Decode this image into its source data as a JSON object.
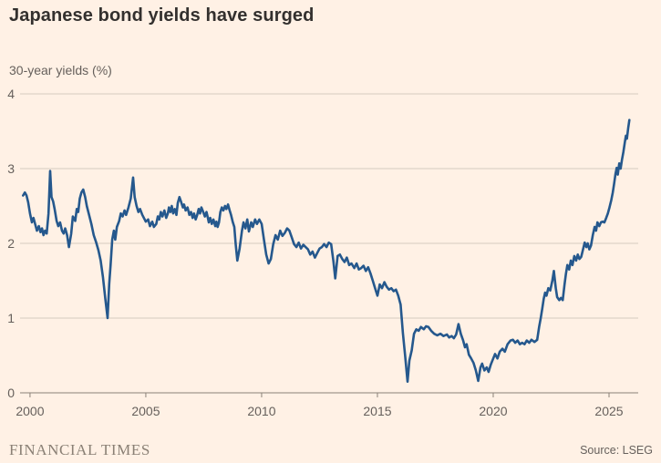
{
  "header": {
    "title": "Japanese bond yields have surged",
    "subtitle": "30-year yields (%)"
  },
  "footer": {
    "brand": "FINANCIAL TIMES",
    "source": "Source: LSEG"
  },
  "colors": {
    "background": "#FFF1E5",
    "title_text": "#33302E",
    "muted_text": "#66605C",
    "gridline": "#D5CABE",
    "baseline": "#8A8178",
    "line": "#25588D",
    "brand_text": "#8A8075"
  },
  "chart_data": {
    "type": "line",
    "title": "Japanese bond yields have surged",
    "ylabel": "30-year yields (%)",
    "xlabel": "",
    "source": "LSEG",
    "legend": "none",
    "grid": "horizontal",
    "ylim": [
      0,
      4
    ],
    "xlim": [
      1999.57,
      2026.26
    ],
    "yticks": [
      0,
      1,
      2,
      3,
      4
    ],
    "xticks": [
      2000,
      2005,
      2010,
      2015,
      2020,
      2025
    ],
    "points": [
      [
        1999.7,
        2.64
      ],
      [
        1999.78,
        2.68
      ],
      [
        1999.85,
        2.64
      ],
      [
        1999.92,
        2.55
      ],
      [
        2000.0,
        2.4
      ],
      [
        2000.08,
        2.28
      ],
      [
        2000.15,
        2.34
      ],
      [
        2000.22,
        2.26
      ],
      [
        2000.3,
        2.17
      ],
      [
        2000.38,
        2.23
      ],
      [
        2000.45,
        2.15
      ],
      [
        2000.52,
        2.2
      ],
      [
        2000.58,
        2.11
      ],
      [
        2000.65,
        2.17
      ],
      [
        2000.72,
        2.13
      ],
      [
        2000.8,
        2.4
      ],
      [
        2000.87,
        2.97
      ],
      [
        2000.93,
        2.62
      ],
      [
        2001.0,
        2.56
      ],
      [
        2001.06,
        2.46
      ],
      [
        2001.15,
        2.3
      ],
      [
        2001.22,
        2.23
      ],
      [
        2001.3,
        2.28
      ],
      [
        2001.38,
        2.17
      ],
      [
        2001.45,
        2.13
      ],
      [
        2001.52,
        2.2
      ],
      [
        2001.6,
        2.11
      ],
      [
        2001.68,
        1.95
      ],
      [
        2001.78,
        2.13
      ],
      [
        2001.85,
        2.36
      ],
      [
        2001.95,
        2.3
      ],
      [
        2002.02,
        2.46
      ],
      [
        2002.08,
        2.42
      ],
      [
        2002.15,
        2.6
      ],
      [
        2002.22,
        2.68
      ],
      [
        2002.3,
        2.72
      ],
      [
        2002.38,
        2.62
      ],
      [
        2002.45,
        2.5
      ],
      [
        2002.55,
        2.38
      ],
      [
        2002.65,
        2.26
      ],
      [
        2002.75,
        2.11
      ],
      [
        2002.85,
        2.02
      ],
      [
        2002.95,
        1.91
      ],
      [
        2003.05,
        1.77
      ],
      [
        2003.15,
        1.55
      ],
      [
        2003.25,
        1.26
      ],
      [
        2003.35,
        1.0
      ],
      [
        2003.42,
        1.46
      ],
      [
        2003.48,
        1.71
      ],
      [
        2003.55,
        2.05
      ],
      [
        2003.62,
        2.17
      ],
      [
        2003.68,
        2.05
      ],
      [
        2003.75,
        2.22
      ],
      [
        2003.85,
        2.3
      ],
      [
        2003.92,
        2.4
      ],
      [
        2004.0,
        2.36
      ],
      [
        2004.08,
        2.44
      ],
      [
        2004.15,
        2.38
      ],
      [
        2004.25,
        2.48
      ],
      [
        2004.35,
        2.6
      ],
      [
        2004.45,
        2.88
      ],
      [
        2004.52,
        2.62
      ],
      [
        2004.6,
        2.5
      ],
      [
        2004.68,
        2.42
      ],
      [
        2004.75,
        2.46
      ],
      [
        2004.85,
        2.38
      ],
      [
        2004.95,
        2.32
      ],
      [
        2005.0,
        2.29
      ],
      [
        2005.1,
        2.32
      ],
      [
        2005.18,
        2.23
      ],
      [
        2005.28,
        2.29
      ],
      [
        2005.35,
        2.22
      ],
      [
        2005.45,
        2.26
      ],
      [
        2005.52,
        2.36
      ],
      [
        2005.58,
        2.32
      ],
      [
        2005.65,
        2.42
      ],
      [
        2005.72,
        2.36
      ],
      [
        2005.8,
        2.44
      ],
      [
        2005.88,
        2.34
      ],
      [
        2005.95,
        2.4
      ],
      [
        2006.0,
        2.48
      ],
      [
        2006.06,
        2.42
      ],
      [
        2006.12,
        2.5
      ],
      [
        2006.18,
        2.4
      ],
      [
        2006.25,
        2.46
      ],
      [
        2006.32,
        2.38
      ],
      [
        2006.38,
        2.54
      ],
      [
        2006.45,
        2.62
      ],
      [
        2006.52,
        2.56
      ],
      [
        2006.6,
        2.48
      ],
      [
        2006.65,
        2.52
      ],
      [
        2006.72,
        2.44
      ],
      [
        2006.8,
        2.48
      ],
      [
        2006.88,
        2.38
      ],
      [
        2006.95,
        2.42
      ],
      [
        2007.02,
        2.34
      ],
      [
        2007.08,
        2.4
      ],
      [
        2007.15,
        2.32
      ],
      [
        2007.22,
        2.38
      ],
      [
        2007.28,
        2.46
      ],
      [
        2007.34,
        2.4
      ],
      [
        2007.4,
        2.48
      ],
      [
        2007.48,
        2.42
      ],
      [
        2007.55,
        2.36
      ],
      [
        2007.62,
        2.42
      ],
      [
        2007.68,
        2.34
      ],
      [
        2007.72,
        2.28
      ],
      [
        2007.78,
        2.34
      ],
      [
        2007.85,
        2.26
      ],
      [
        2007.92,
        2.32
      ],
      [
        2008.0,
        2.23
      ],
      [
        2008.05,
        2.29
      ],
      [
        2008.1,
        2.22
      ],
      [
        2008.16,
        2.28
      ],
      [
        2008.22,
        2.42
      ],
      [
        2008.28,
        2.48
      ],
      [
        2008.35,
        2.44
      ],
      [
        2008.42,
        2.5
      ],
      [
        2008.48,
        2.46
      ],
      [
        2008.55,
        2.52
      ],
      [
        2008.62,
        2.44
      ],
      [
        2008.68,
        2.38
      ],
      [
        2008.75,
        2.29
      ],
      [
        2008.82,
        2.22
      ],
      [
        2008.88,
        1.99
      ],
      [
        2008.95,
        1.77
      ],
      [
        2009.05,
        1.93
      ],
      [
        2009.15,
        2.17
      ],
      [
        2009.22,
        2.28
      ],
      [
        2009.3,
        2.2
      ],
      [
        2009.38,
        2.32
      ],
      [
        2009.45,
        2.16
      ],
      [
        2009.55,
        2.28
      ],
      [
        2009.62,
        2.22
      ],
      [
        2009.72,
        2.32
      ],
      [
        2009.8,
        2.26
      ],
      [
        2009.9,
        2.32
      ],
      [
        2010.0,
        2.26
      ],
      [
        2010.1,
        2.05
      ],
      [
        2010.2,
        1.85
      ],
      [
        2010.3,
        1.73
      ],
      [
        2010.4,
        1.79
      ],
      [
        2010.5,
        1.99
      ],
      [
        2010.6,
        2.11
      ],
      [
        2010.7,
        2.05
      ],
      [
        2010.8,
        2.17
      ],
      [
        2010.9,
        2.1
      ],
      [
        2011.0,
        2.14
      ],
      [
        2011.1,
        2.2
      ],
      [
        2011.2,
        2.17
      ],
      [
        2011.3,
        2.08
      ],
      [
        2011.4,
        1.99
      ],
      [
        2011.5,
        1.95
      ],
      [
        2011.6,
        2.01
      ],
      [
        2011.7,
        1.93
      ],
      [
        2011.8,
        1.98
      ],
      [
        2011.9,
        1.95
      ],
      [
        2012.0,
        1.92
      ],
      [
        2012.1,
        1.85
      ],
      [
        2012.2,
        1.89
      ],
      [
        2012.3,
        1.81
      ],
      [
        2012.4,
        1.87
      ],
      [
        2012.5,
        1.93
      ],
      [
        2012.6,
        1.95
      ],
      [
        2012.7,
        1.99
      ],
      [
        2012.8,
        1.95
      ],
      [
        2012.9,
        2.01
      ],
      [
        2013.0,
        1.99
      ],
      [
        2013.1,
        1.76
      ],
      [
        2013.18,
        1.53
      ],
      [
        2013.28,
        1.83
      ],
      [
        2013.38,
        1.85
      ],
      [
        2013.48,
        1.79
      ],
      [
        2013.58,
        1.75
      ],
      [
        2013.68,
        1.81
      ],
      [
        2013.78,
        1.71
      ],
      [
        2013.88,
        1.73
      ],
      [
        2014.0,
        1.67
      ],
      [
        2014.1,
        1.73
      ],
      [
        2014.2,
        1.65
      ],
      [
        2014.3,
        1.67
      ],
      [
        2014.4,
        1.7
      ],
      [
        2014.5,
        1.63
      ],
      [
        2014.6,
        1.68
      ],
      [
        2014.7,
        1.6
      ],
      [
        2014.8,
        1.5
      ],
      [
        2014.9,
        1.4
      ],
      [
        2015.0,
        1.3
      ],
      [
        2015.1,
        1.45
      ],
      [
        2015.2,
        1.4
      ],
      [
        2015.3,
        1.48
      ],
      [
        2015.4,
        1.42
      ],
      [
        2015.5,
        1.38
      ],
      [
        2015.6,
        1.4
      ],
      [
        2015.7,
        1.36
      ],
      [
        2015.8,
        1.38
      ],
      [
        2015.9,
        1.3
      ],
      [
        2016.0,
        1.18
      ],
      [
        2016.1,
        0.8
      ],
      [
        2016.2,
        0.49
      ],
      [
        2016.3,
        0.15
      ],
      [
        2016.38,
        0.43
      ],
      [
        2016.48,
        0.57
      ],
      [
        2016.58,
        0.79
      ],
      [
        2016.68,
        0.85
      ],
      [
        2016.78,
        0.83
      ],
      [
        2016.88,
        0.88
      ],
      [
        2017.0,
        0.85
      ],
      [
        2017.1,
        0.89
      ],
      [
        2017.2,
        0.88
      ],
      [
        2017.32,
        0.83
      ],
      [
        2017.45,
        0.79
      ],
      [
        2017.58,
        0.77
      ],
      [
        2017.72,
        0.79
      ],
      [
        2017.85,
        0.76
      ],
      [
        2018.0,
        0.78
      ],
      [
        2018.1,
        0.74
      ],
      [
        2018.2,
        0.76
      ],
      [
        2018.3,
        0.73
      ],
      [
        2018.4,
        0.78
      ],
      [
        2018.5,
        0.92
      ],
      [
        2018.6,
        0.79
      ],
      [
        2018.7,
        0.7
      ],
      [
        2018.78,
        0.61
      ],
      [
        2018.85,
        0.65
      ],
      [
        2018.95,
        0.51
      ],
      [
        2019.05,
        0.46
      ],
      [
        2019.15,
        0.4
      ],
      [
        2019.25,
        0.3
      ],
      [
        2019.35,
        0.16
      ],
      [
        2019.45,
        0.34
      ],
      [
        2019.52,
        0.39
      ],
      [
        2019.62,
        0.3
      ],
      [
        2019.72,
        0.34
      ],
      [
        2019.8,
        0.28
      ],
      [
        2019.9,
        0.38
      ],
      [
        2020.0,
        0.46
      ],
      [
        2020.08,
        0.52
      ],
      [
        2020.18,
        0.46
      ],
      [
        2020.28,
        0.55
      ],
      [
        2020.4,
        0.59
      ],
      [
        2020.5,
        0.55
      ],
      [
        2020.62,
        0.65
      ],
      [
        2020.75,
        0.7
      ],
      [
        2020.85,
        0.71
      ],
      [
        2020.95,
        0.67
      ],
      [
        2021.05,
        0.7
      ],
      [
        2021.15,
        0.65
      ],
      [
        2021.25,
        0.67
      ],
      [
        2021.35,
        0.65
      ],
      [
        2021.45,
        0.7
      ],
      [
        2021.55,
        0.67
      ],
      [
        2021.65,
        0.71
      ],
      [
        2021.78,
        0.68
      ],
      [
        2021.9,
        0.71
      ],
      [
        2021.98,
        0.88
      ],
      [
        2022.05,
        1.0
      ],
      [
        2022.12,
        1.13
      ],
      [
        2022.18,
        1.26
      ],
      [
        2022.24,
        1.34
      ],
      [
        2022.3,
        1.3
      ],
      [
        2022.38,
        1.4
      ],
      [
        2022.46,
        1.37
      ],
      [
        2022.55,
        1.5
      ],
      [
        2022.62,
        1.63
      ],
      [
        2022.7,
        1.4
      ],
      [
        2022.76,
        1.28
      ],
      [
        2022.85,
        1.24
      ],
      [
        2022.92,
        1.27
      ],
      [
        2023.0,
        1.24
      ],
      [
        2023.08,
        1.45
      ],
      [
        2023.14,
        1.59
      ],
      [
        2023.2,
        1.71
      ],
      [
        2023.28,
        1.65
      ],
      [
        2023.35,
        1.77
      ],
      [
        2023.42,
        1.71
      ],
      [
        2023.5,
        1.83
      ],
      [
        2023.58,
        1.77
      ],
      [
        2023.65,
        1.85
      ],
      [
        2023.72,
        1.79
      ],
      [
        2023.8,
        1.82
      ],
      [
        2023.88,
        1.92
      ],
      [
        2023.95,
        2.01
      ],
      [
        2024.02,
        1.95
      ],
      [
        2024.08,
        2.0
      ],
      [
        2024.15,
        1.92
      ],
      [
        2024.22,
        1.97
      ],
      [
        2024.3,
        2.11
      ],
      [
        2024.38,
        2.22
      ],
      [
        2024.44,
        2.17
      ],
      [
        2024.5,
        2.28
      ],
      [
        2024.58,
        2.23
      ],
      [
        2024.65,
        2.28
      ],
      [
        2024.72,
        2.29
      ],
      [
        2024.8,
        2.28
      ],
      [
        2024.88,
        2.34
      ],
      [
        2024.95,
        2.4
      ],
      [
        2025.02,
        2.48
      ],
      [
        2025.1,
        2.58
      ],
      [
        2025.16,
        2.68
      ],
      [
        2025.22,
        2.8
      ],
      [
        2025.28,
        2.93
      ],
      [
        2025.33,
        3.01
      ],
      [
        2025.38,
        2.92
      ],
      [
        2025.44,
        3.07
      ],
      [
        2025.5,
        3.0
      ],
      [
        2025.56,
        3.12
      ],
      [
        2025.62,
        3.22
      ],
      [
        2025.68,
        3.35
      ],
      [
        2025.73,
        3.44
      ],
      [
        2025.77,
        3.4
      ],
      [
        2025.83,
        3.55
      ],
      [
        2025.88,
        3.65
      ]
    ]
  }
}
